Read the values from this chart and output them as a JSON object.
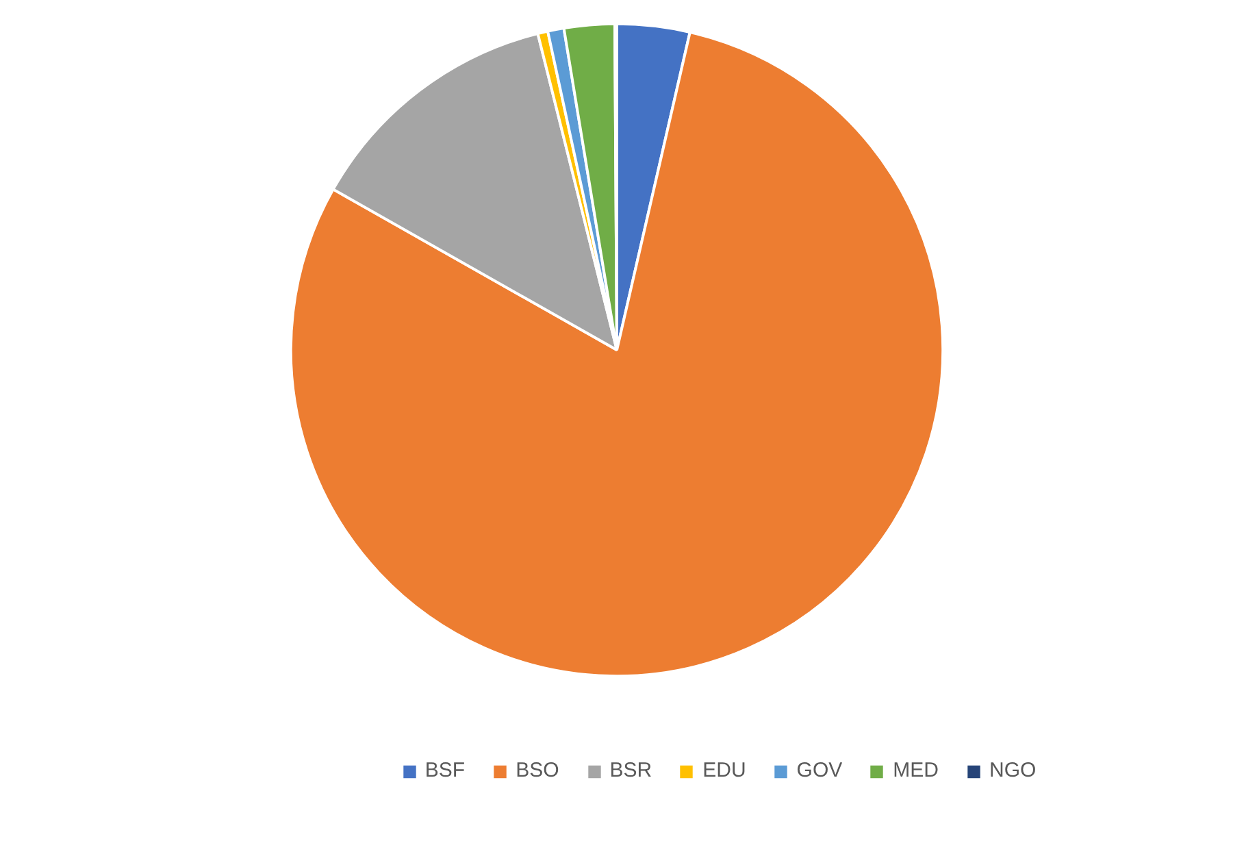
{
  "chart_data": {
    "type": "pie",
    "categories": [
      "BSF",
      "BSO",
      "BSR",
      "EDU",
      "GOV",
      "MED",
      "NGO"
    ],
    "values": [
      3.6,
      79.6,
      12.9,
      0.5,
      0.8,
      2.5,
      0.1
    ],
    "colors": [
      "#4472c4",
      "#ed7d31",
      "#a5a5a5",
      "#ffc000",
      "#5b9bd5",
      "#70ad47",
      "#264478"
    ],
    "legend": "bottom"
  }
}
